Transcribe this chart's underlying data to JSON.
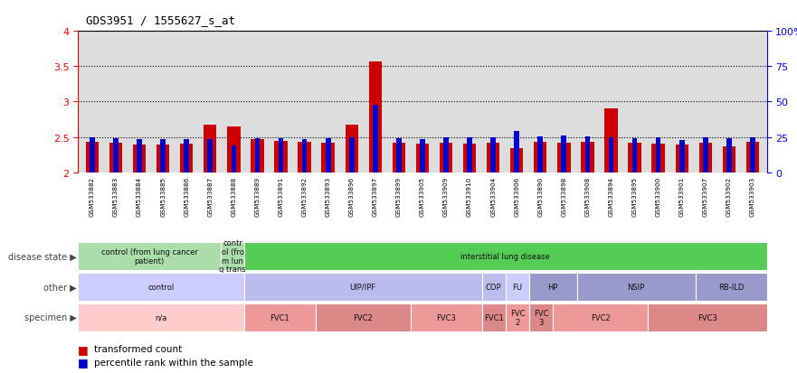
{
  "title": "GDS3951 / 1555627_s_at",
  "samples": [
    "GSM533882",
    "GSM533883",
    "GSM533884",
    "GSM533885",
    "GSM533886",
    "GSM533887",
    "GSM533888",
    "GSM533889",
    "GSM533891",
    "GSM533892",
    "GSM533893",
    "GSM533896",
    "GSM533897",
    "GSM533899",
    "GSM533905",
    "GSM533909",
    "GSM533910",
    "GSM533904",
    "GSM533906",
    "GSM533890",
    "GSM533898",
    "GSM533908",
    "GSM533894",
    "GSM533895",
    "GSM533900",
    "GSM533901",
    "GSM533907",
    "GSM533902",
    "GSM533903"
  ],
  "red_values": [
    2.43,
    2.42,
    2.4,
    2.39,
    2.41,
    2.67,
    2.65,
    2.47,
    2.45,
    2.43,
    2.42,
    2.68,
    3.57,
    2.42,
    2.41,
    2.42,
    2.41,
    2.42,
    2.35,
    2.43,
    2.42,
    2.43,
    2.9,
    2.42,
    2.41,
    2.4,
    2.42,
    2.37,
    2.43
  ],
  "blue_values": [
    2.5,
    2.48,
    2.47,
    2.47,
    2.47,
    2.47,
    2.38,
    2.48,
    2.49,
    2.47,
    2.48,
    2.5,
    2.96,
    2.48,
    2.47,
    2.5,
    2.5,
    2.5,
    2.59,
    2.51,
    2.52,
    2.51,
    2.5,
    2.49,
    2.5,
    2.46,
    2.5,
    2.48,
    2.5
  ],
  "ymin": 2.0,
  "ymax": 4.0,
  "yticks": [
    2.0,
    2.5,
    3.0,
    3.5,
    4.0
  ],
  "ytick_labels_left": [
    "2",
    "2.5",
    "3",
    "3.5",
    "4"
  ],
  "ytick_labels_right": [
    "0",
    "25",
    "50",
    "75",
    "100%"
  ],
  "dotted_lines": [
    2.5,
    3.0,
    3.5
  ],
  "disease_state_groups": [
    {
      "label": "control (from lung cancer\npatient)",
      "start": 0,
      "end": 6,
      "color": "#aaddaa"
    },
    {
      "label": "contr\nol (fro\nm lun\ng trans",
      "start": 6,
      "end": 7,
      "color": "#aaddaa"
    },
    {
      "label": "interstitial lung disease",
      "start": 7,
      "end": 29,
      "color": "#55cc55"
    }
  ],
  "other_groups": [
    {
      "label": "control",
      "start": 0,
      "end": 7,
      "color": "#ccccff"
    },
    {
      "label": "UIP/IPF",
      "start": 7,
      "end": 17,
      "color": "#bbbbee"
    },
    {
      "label": "COP",
      "start": 17,
      "end": 18,
      "color": "#bbbbee"
    },
    {
      "label": "FU",
      "start": 18,
      "end": 19,
      "color": "#ccccff"
    },
    {
      "label": "HP",
      "start": 19,
      "end": 21,
      "color": "#9999cc"
    },
    {
      "label": "NSIP",
      "start": 21,
      "end": 26,
      "color": "#9999cc"
    },
    {
      "label": "RB-ILD",
      "start": 26,
      "end": 29,
      "color": "#9999cc"
    }
  ],
  "specimen_groups": [
    {
      "label": "n/a",
      "start": 0,
      "end": 7,
      "color": "#ffcccc"
    },
    {
      "label": "FVC1",
      "start": 7,
      "end": 10,
      "color": "#ee9999"
    },
    {
      "label": "FVC2",
      "start": 10,
      "end": 14,
      "color": "#dd8888"
    },
    {
      "label": "FVC3",
      "start": 14,
      "end": 17,
      "color": "#ee9999"
    },
    {
      "label": "FVC1",
      "start": 17,
      "end": 18,
      "color": "#dd8888"
    },
    {
      "label": "FVC\n2",
      "start": 18,
      "end": 19,
      "color": "#ee9999"
    },
    {
      "label": "FVC\n3",
      "start": 19,
      "end": 20,
      "color": "#dd8888"
    },
    {
      "label": "FVC2",
      "start": 20,
      "end": 24,
      "color": "#ee9999"
    },
    {
      "label": "FVC3",
      "start": 24,
      "end": 29,
      "color": "#dd8888"
    }
  ],
  "red_color": "#cc0000",
  "blue_color": "#0000cc",
  "bg_color": "#dddddd",
  "legend_red": "transformed count",
  "legend_blue": "percentile rank within the sample"
}
